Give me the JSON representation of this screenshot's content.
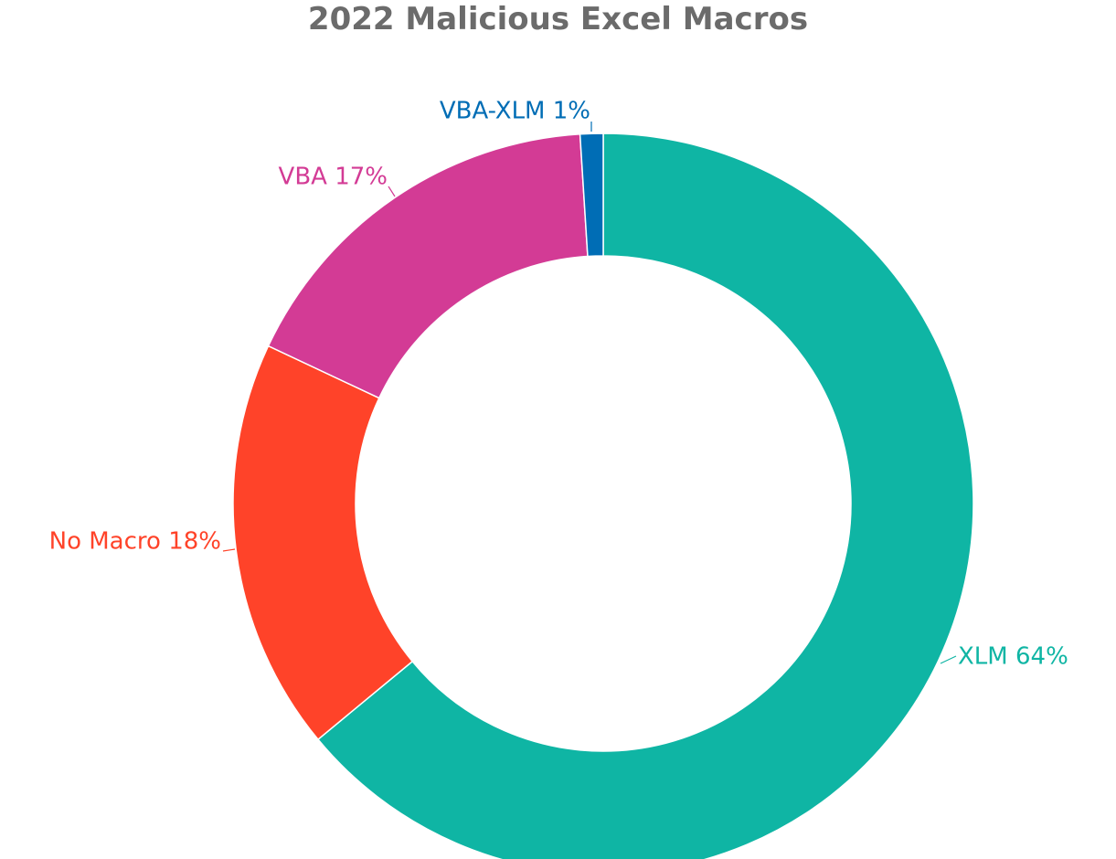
{
  "chart_data": {
    "type": "pie",
    "title": "2022 Malicious Excel Macros",
    "title_color": "#6b6b6b",
    "donut": true,
    "slices": [
      {
        "name": "XLM",
        "value": 64,
        "label": "XLM 64%",
        "color": "#0fb5a4"
      },
      {
        "name": "No Macro",
        "value": 18,
        "label": "No Macro 18%",
        "color": "#ff4329"
      },
      {
        "name": "VBA",
        "value": 17,
        "label": "VBA 17%",
        "color": "#d33b95"
      },
      {
        "name": "VBA-XLM",
        "value": 1,
        "label": "VBA-XLM 1%",
        "color": "#006db5"
      }
    ]
  }
}
